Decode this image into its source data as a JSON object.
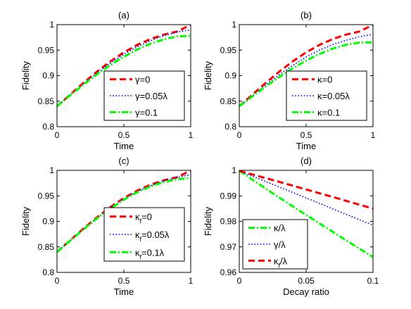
{
  "colors": {
    "red": "#ff0000",
    "blue": "#0000ff",
    "green": "#00ff00",
    "axis": "#000000"
  },
  "chart_data": [
    {
      "type": "line",
      "title": "(a)",
      "xlabel": "Time",
      "ylabel": "Fidelity",
      "xlim": [
        0,
        1
      ],
      "ylim": [
        0.8,
        1
      ],
      "xticks": [
        "0",
        "0.5",
        "1"
      ],
      "yticks": [
        "0.8",
        "0.85",
        "0.9",
        "0.95",
        "1"
      ],
      "legend": "bottom-right",
      "x": [
        0,
        0.1,
        0.2,
        0.3,
        0.4,
        0.5,
        0.6,
        0.7,
        0.8,
        0.9,
        1.0
      ],
      "series": [
        {
          "name": "γ=0",
          "color": "#ff0000",
          "style": "dashed",
          "values": [
            0.84,
            0.8633,
            0.8863,
            0.9081,
            0.9281,
            0.9457,
            0.9603,
            0.9719,
            0.9806,
            0.9866,
            0.9998
          ]
        },
        {
          "name": "γ=0.05λ",
          "color": "#0000ff",
          "style": "dotted",
          "values": [
            0.84,
            0.8625,
            0.8845,
            0.9055,
            0.925,
            0.942,
            0.9565,
            0.9685,
            0.9785,
            0.9855,
            0.99
          ]
        },
        {
          "name": "γ=0.1",
          "color": "#00ff00",
          "style": "dashdot",
          "values": [
            0.84,
            0.8618,
            0.8828,
            0.9027,
            0.921,
            0.9372,
            0.9512,
            0.9627,
            0.9712,
            0.977,
            0.978
          ]
        }
      ]
    },
    {
      "type": "line",
      "title": "(b)",
      "xlabel": "Time",
      "ylabel": "Fidelity",
      "xlim": [
        0,
        1
      ],
      "ylim": [
        0.8,
        1
      ],
      "xticks": [
        "0",
        "0.5",
        "1"
      ],
      "yticks": [
        "0.8",
        "0.85",
        "0.9",
        "0.95",
        "1"
      ],
      "legend": "bottom-right",
      "x": [
        0,
        0.1,
        0.2,
        0.3,
        0.4,
        0.5,
        0.6,
        0.7,
        0.8,
        0.9,
        1.0
      ],
      "series": [
        {
          "name": "κ=0",
          "color": "#ff0000",
          "style": "dashed",
          "values": [
            0.84,
            0.8633,
            0.8863,
            0.9081,
            0.9281,
            0.9457,
            0.9603,
            0.9719,
            0.9806,
            0.9866,
            0.9998
          ]
        },
        {
          "name": "κ=0.05λ",
          "color": "#0000ff",
          "style": "dotted",
          "values": [
            0.84,
            0.861,
            0.882,
            0.902,
            0.92,
            0.9365,
            0.95,
            0.961,
            0.9695,
            0.9765,
            0.981
          ]
        },
        {
          "name": "κ=0.1",
          "color": "#00ff00",
          "style": "dashdot",
          "values": [
            0.84,
            0.8598,
            0.879,
            0.8975,
            0.9145,
            0.9295,
            0.9425,
            0.953,
            0.9605,
            0.965,
            0.965
          ]
        }
      ]
    },
    {
      "type": "line",
      "title": "(c)",
      "xlabel": "Time",
      "ylabel": "Fidelity",
      "xlim": [
        0,
        1
      ],
      "ylim": [
        0.8,
        1
      ],
      "xticks": [
        "0",
        "0.5",
        "1"
      ],
      "yticks": [
        "0.8",
        "0.85",
        "0.9",
        "0.95",
        "1"
      ],
      "legend": "bottom-right",
      "x": [
        0,
        0.1,
        0.2,
        0.3,
        0.4,
        0.5,
        0.6,
        0.7,
        0.8,
        0.9,
        1.0
      ],
      "series": [
        {
          "name": "κ_f=0",
          "color": "#ff0000",
          "style": "dashed",
          "values": [
            0.84,
            0.8633,
            0.8863,
            0.9081,
            0.9281,
            0.9457,
            0.9603,
            0.9719,
            0.9806,
            0.9866,
            0.9998
          ]
        },
        {
          "name": "κ_f=0.05λ",
          "color": "#0000ff",
          "style": "dotted",
          "values": [
            0.84,
            0.8628,
            0.8855,
            0.907,
            0.9265,
            0.944,
            0.9585,
            0.97,
            0.9795,
            0.986,
            0.992
          ]
        },
        {
          "name": "κ_f=0.1λ",
          "color": "#00ff00",
          "style": "dashdot",
          "values": [
            0.84,
            0.8625,
            0.8848,
            0.906,
            0.925,
            0.9425,
            0.957,
            0.9685,
            0.977,
            0.9825,
            0.985
          ]
        }
      ]
    },
    {
      "type": "line",
      "title": "(d)",
      "xlabel": "Decay ratio",
      "ylabel": "Fidelity",
      "xlim": [
        0,
        0.1
      ],
      "ylim": [
        0.96,
        1
      ],
      "xticks": [
        "0",
        "0.05",
        "0.1"
      ],
      "yticks": [
        "0.96",
        "0.97",
        "0.98",
        "0.99",
        "1"
      ],
      "legend": "bottom-left",
      "x": [
        0,
        0.025,
        0.05,
        0.075,
        0.1
      ],
      "series": [
        {
          "name": "κ/λ",
          "color": "#00ff00",
          "style": "dashdot",
          "values": [
            0.9998,
            0.991,
            0.9825,
            0.9742,
            0.966
          ]
        },
        {
          "name": "γ/λ",
          "color": "#0000ff",
          "style": "dotted",
          "values": [
            0.9998,
            0.9945,
            0.9892,
            0.9838,
            0.9785
          ]
        },
        {
          "name": "κ_f/λ",
          "color": "#ff0000",
          "style": "dashed",
          "values": [
            0.9998,
            0.9962,
            0.9925,
            0.9888,
            0.985
          ]
        }
      ]
    }
  ]
}
